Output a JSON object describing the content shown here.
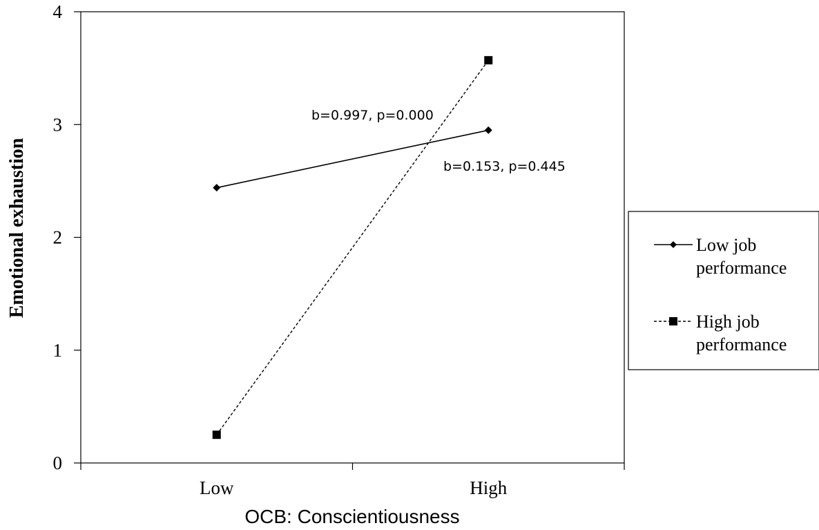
{
  "chart_data": {
    "type": "line",
    "title": "",
    "xlabel": "OCB: Conscientiousness",
    "ylabel": "Emotional exhaustion",
    "categories": [
      "Low",
      "High"
    ],
    "ylim": [
      0,
      4
    ],
    "yticks": [
      "0",
      "1",
      "2",
      "3",
      "4"
    ],
    "grid": false,
    "legend_position": "right",
    "series": [
      {
        "name": "Low job performance",
        "legend_lines": [
          "Low job",
          "performance"
        ],
        "values": [
          2.44,
          2.95
        ],
        "line_style": "solid",
        "marker": "diamond",
        "color": "#000000"
      },
      {
        "name": "High job performance",
        "legend_lines": [
          "High job",
          "performance"
        ],
        "values": [
          0.25,
          3.57
        ],
        "line_style": "dashed",
        "marker": "square",
        "color": "#000000"
      }
    ],
    "annotations": [
      {
        "text": "b=0.997, p=0.000"
      },
      {
        "text": "b=0.153, p=0.445"
      }
    ]
  }
}
